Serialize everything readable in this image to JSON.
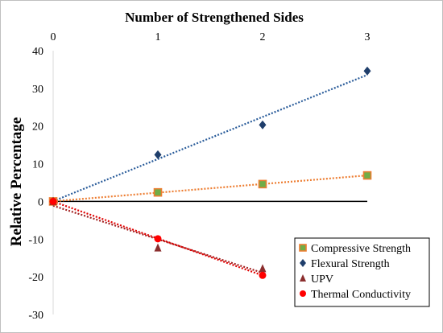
{
  "chart_data": {
    "type": "scatter",
    "title": "",
    "xlabel": "Number of Strengthened Sides",
    "ylabel": "Relative Percentage",
    "x_axis_position": "top",
    "xlim": [
      0,
      3
    ],
    "ylim": [
      -30,
      40
    ],
    "xticks": [
      "0",
      "1",
      "2",
      "3"
    ],
    "yticks": [
      "-30",
      "-20",
      "-10",
      "0",
      "10",
      "20",
      "30",
      "40"
    ],
    "grid": false,
    "legend_position": "bottom-right",
    "trendlines": "linear, dotted",
    "series": [
      {
        "name": "Compressive Strength",
        "marker": "square",
        "color": "#70AD47",
        "edge_color": "#ED7D31",
        "trend_color": "#ED7D31",
        "x": [
          0,
          1,
          2,
          3
        ],
        "y": [
          0,
          2.4,
          4.6,
          6.9
        ]
      },
      {
        "name": "Flexural Strength",
        "marker": "diamond",
        "color": "#1F3E6B",
        "trend_color": "#2A5C9A",
        "x": [
          0,
          1,
          2,
          3
        ],
        "y": [
          0,
          12.4,
          20.3,
          34.6
        ]
      },
      {
        "name": "UPV",
        "marker": "triangle",
        "color": "#8B2E2E",
        "trend_color": "#A32020",
        "x": [
          0,
          1,
          2
        ],
        "y": [
          0,
          -12.3,
          -17.8
        ]
      },
      {
        "name": "Thermal Conductivity",
        "marker": "circle",
        "color": "#FF0000",
        "trend_color": "#E00000",
        "x": [
          0,
          1,
          2
        ],
        "y": [
          0,
          -9.9,
          -19.6
        ]
      }
    ]
  }
}
